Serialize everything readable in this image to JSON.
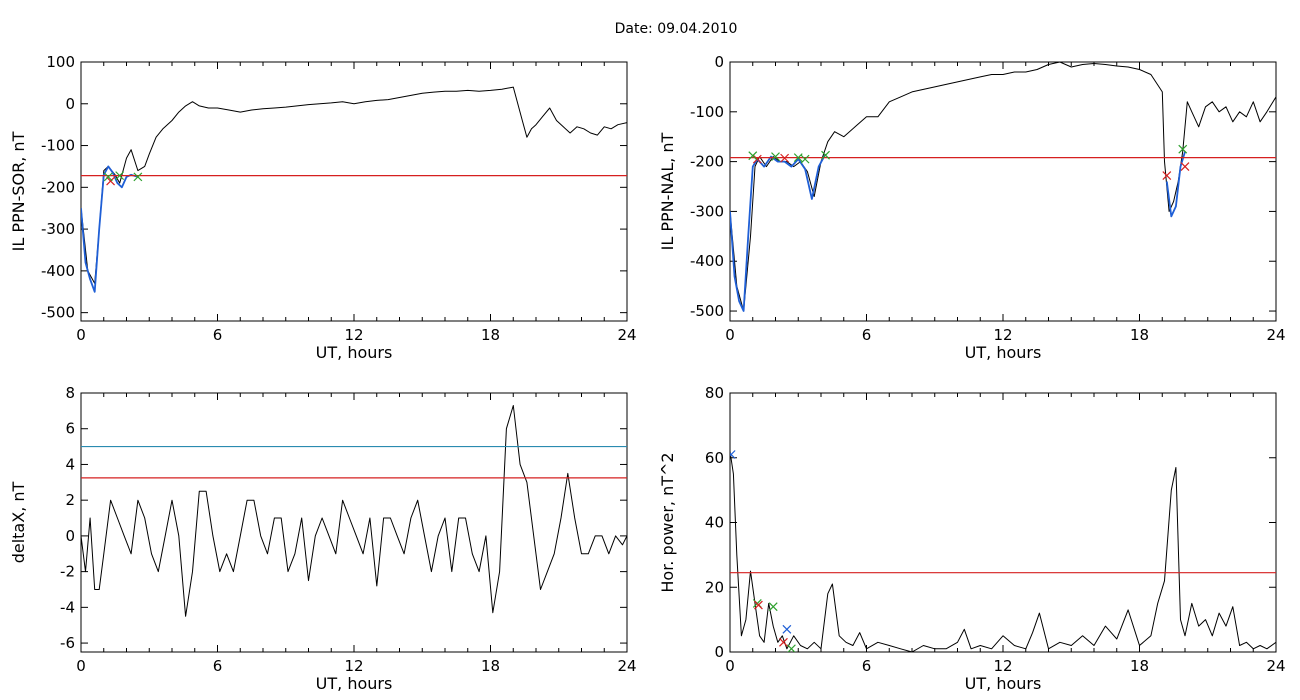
{
  "figure": {
    "title": "Date:  09.04.2010"
  },
  "chart_data": [
    {
      "type": "line",
      "xlabel": "UT, hours",
      "ylabel": "IL PPN-SOR, nT",
      "xlim": [
        0,
        24
      ],
      "ylim": [
        -520,
        100
      ],
      "xticks": [
        0,
        6,
        12,
        18,
        24
      ],
      "yticks": [
        100,
        0,
        -100,
        -200,
        -300,
        -400,
        -500
      ],
      "series": [
        {
          "role": "signal",
          "color": "#000000",
          "x": [
            0,
            0.3,
            0.6,
            0.8,
            1.0,
            1.2,
            1.5,
            1.7,
            2.0,
            2.2,
            2.5,
            2.8,
            3.0,
            3.3,
            3.6,
            4.0,
            4.3,
            4.6,
            4.9,
            5.2,
            5.6,
            6.0,
            6.5,
            7.0,
            7.5,
            8.0,
            8.5,
            9.0,
            9.5,
            10.0,
            10.5,
            11.0,
            11.5,
            12.0,
            12.5,
            13.0,
            13.5,
            14.0,
            14.5,
            15.0,
            15.5,
            16.0,
            16.5,
            17.0,
            17.5,
            18.0,
            18.5,
            19.0,
            19.4,
            19.6,
            19.8,
            20.0,
            20.3,
            20.6,
            20.9,
            21.2,
            21.5,
            21.8,
            22.1,
            22.4,
            22.7,
            23.0,
            23.3,
            23.6,
            24.0
          ],
          "y": [
            -250,
            -400,
            -430,
            -300,
            -160,
            -150,
            -170,
            -190,
            -130,
            -110,
            -160,
            -150,
            -120,
            -80,
            -60,
            -40,
            -20,
            -5,
            5,
            -5,
            -10,
            -10,
            -15,
            -20,
            -15,
            -12,
            -10,
            -8,
            -5,
            -2,
            0,
            2,
            5,
            0,
            5,
            8,
            10,
            15,
            20,
            25,
            28,
            30,
            30,
            32,
            30,
            32,
            35,
            40,
            -40,
            -80,
            -60,
            -50,
            -30,
            -10,
            -40,
            -55,
            -70,
            -55,
            -60,
            -70,
            -75,
            -55,
            -60,
            -50,
            -45
          ]
        },
        {
          "role": "highlight",
          "color": "#1f5fd6",
          "x": [
            0,
            0.2,
            0.4,
            0.6,
            0.8,
            1.0,
            1.2,
            1.4,
            1.6,
            1.8,
            2.0,
            2.2,
            2.5
          ],
          "y": [
            -250,
            -380,
            -420,
            -450,
            -300,
            -170,
            -150,
            -165,
            -190,
            -200,
            -175,
            -170,
            -175
          ]
        },
        {
          "role": "threshold",
          "color": "#d62020",
          "y": -172
        }
      ],
      "markers": [
        {
          "color": "#d62020",
          "x": 1.3,
          "y": -185
        },
        {
          "color": "#2ca02c",
          "x": 1.2,
          "y": -175
        },
        {
          "color": "#2ca02c",
          "x": 1.7,
          "y": -172
        },
        {
          "color": "#2ca02c",
          "x": 2.5,
          "y": -175
        }
      ]
    },
    {
      "type": "line",
      "xlabel": "UT, hours",
      "ylabel": "IL PPN-NAL, nT",
      "xlim": [
        0,
        24
      ],
      "ylim": [
        -520,
        0
      ],
      "xticks": [
        0,
        6,
        12,
        18,
        24
      ],
      "yticks": [
        0,
        -100,
        -200,
        -300,
        -400,
        -500
      ],
      "series": [
        {
          "role": "signal",
          "color": "#000000",
          "x": [
            0,
            0.3,
            0.6,
            0.9,
            1.1,
            1.3,
            1.6,
            1.9,
            2.2,
            2.5,
            2.8,
            3.1,
            3.4,
            3.7,
            4.0,
            4.3,
            4.6,
            5.0,
            5.5,
            6.0,
            6.5,
            7.0,
            7.5,
            8.0,
            8.5,
            9.0,
            9.5,
            10.0,
            10.5,
            11.0,
            11.5,
            12.0,
            12.5,
            13.0,
            13.5,
            14.0,
            14.5,
            15.0,
            15.5,
            16.0,
            16.5,
            17.0,
            17.5,
            18.0,
            18.5,
            19.0,
            19.1,
            19.3,
            19.5,
            19.7,
            19.9,
            20.1,
            20.3,
            20.6,
            20.9,
            21.2,
            21.5,
            21.8,
            22.1,
            22.4,
            22.7,
            23.0,
            23.3,
            23.6,
            24.0
          ],
          "y": [
            -300,
            -450,
            -500,
            -350,
            -210,
            -190,
            -210,
            -190,
            -200,
            -200,
            -210,
            -200,
            -220,
            -270,
            -200,
            -160,
            -140,
            -150,
            -130,
            -110,
            -110,
            -80,
            -70,
            -60,
            -55,
            -50,
            -45,
            -40,
            -35,
            -30,
            -25,
            -25,
            -20,
            -20,
            -15,
            -5,
            0,
            -10,
            -5,
            -3,
            -5,
            -8,
            -10,
            -15,
            -25,
            -60,
            -200,
            -300,
            -280,
            -240,
            -180,
            -80,
            -100,
            -130,
            -90,
            -80,
            -100,
            -90,
            -120,
            -100,
            -110,
            -80,
            -120,
            -100,
            -70
          ]
        },
        {
          "role": "highlight",
          "color": "#1f5fd6",
          "x": [
            0,
            0.2,
            0.4,
            0.6,
            0.8,
            1.0,
            1.2,
            1.5,
            1.8,
            2.1,
            2.4,
            2.7,
            3.0,
            3.3,
            3.6,
            3.9,
            4.2
          ],
          "y": [
            -300,
            -430,
            -480,
            -500,
            -350,
            -210,
            -195,
            -210,
            -190,
            -200,
            -200,
            -210,
            -195,
            -215,
            -275,
            -210,
            -185
          ]
        },
        {
          "role": "highlight",
          "color": "#1f5fd6",
          "x": [
            19.2,
            19.4,
            19.6,
            19.8,
            20.0
          ],
          "y": [
            -240,
            -310,
            -290,
            -210,
            -180
          ]
        },
        {
          "role": "threshold",
          "color": "#d62020",
          "y": -192
        }
      ],
      "markers": [
        {
          "color": "#d62020",
          "x": 1.2,
          "y": -195
        },
        {
          "color": "#2ca02c",
          "x": 1.0,
          "y": -188
        },
        {
          "color": "#2ca02c",
          "x": 2.0,
          "y": -190
        },
        {
          "color": "#d62020",
          "x": 2.4,
          "y": -193
        },
        {
          "color": "#2ca02c",
          "x": 3.0,
          "y": -192
        },
        {
          "color": "#2ca02c",
          "x": 3.3,
          "y": -195
        },
        {
          "color": "#2ca02c",
          "x": 4.2,
          "y": -187
        },
        {
          "color": "#d62020",
          "x": 19.2,
          "y": -228
        },
        {
          "color": "#2ca02c",
          "x": 19.9,
          "y": -175
        },
        {
          "color": "#d62020",
          "x": 20.0,
          "y": -210
        }
      ]
    },
    {
      "type": "line",
      "xlabel": "UT, hours",
      "ylabel": "deltaX, nT",
      "xlim": [
        0,
        24
      ],
      "ylim": [
        -6.5,
        8
      ],
      "xticks": [
        0,
        6,
        12,
        18,
        24
      ],
      "yticks": [
        8,
        6,
        4,
        2,
        0,
        -2,
        -4,
        -6
      ],
      "series": [
        {
          "role": "signal",
          "color": "#000000",
          "x": [
            0,
            0.2,
            0.4,
            0.6,
            0.8,
            1.0,
            1.3,
            1.6,
            1.9,
            2.2,
            2.5,
            2.8,
            3.1,
            3.4,
            3.7,
            4.0,
            4.3,
            4.6,
            4.9,
            5.2,
            5.5,
            5.8,
            6.1,
            6.4,
            6.7,
            7.0,
            7.3,
            7.6,
            7.9,
            8.2,
            8.5,
            8.8,
            9.1,
            9.4,
            9.7,
            10.0,
            10.3,
            10.6,
            10.9,
            11.2,
            11.5,
            11.8,
            12.1,
            12.4,
            12.7,
            13.0,
            13.3,
            13.6,
            13.9,
            14.2,
            14.5,
            14.8,
            15.1,
            15.4,
            15.7,
            16.0,
            16.3,
            16.6,
            16.9,
            17.2,
            17.5,
            17.8,
            18.1,
            18.4,
            18.7,
            19.0,
            19.3,
            19.6,
            19.9,
            20.2,
            20.5,
            20.8,
            21.1,
            21.4,
            21.7,
            22.0,
            22.3,
            22.6,
            22.9,
            23.2,
            23.5,
            23.8,
            24.0
          ],
          "y": [
            0,
            -2,
            1,
            -3,
            -3,
            -1,
            2,
            1,
            0,
            -1,
            2,
            1,
            -1,
            -2,
            0,
            2,
            0,
            -4.5,
            -2,
            2.5,
            2.5,
            0,
            -2,
            -1,
            -2,
            0,
            2,
            2,
            0,
            -1,
            1,
            1,
            -2,
            -1,
            1,
            -2.5,
            0,
            1,
            0,
            -1,
            2,
            1,
            0,
            -1,
            1,
            -2.8,
            1,
            1,
            0,
            -1,
            1,
            2,
            0,
            -2,
            0,
            1,
            -2,
            1,
            1,
            -1,
            -2,
            0,
            -4.3,
            -2,
            6,
            7.3,
            4,
            3,
            0,
            -3,
            -2,
            -1,
            1,
            3.5,
            1,
            -1,
            -1,
            0,
            0,
            -1,
            0,
            -0.5,
            0
          ]
        },
        {
          "role": "threshold",
          "color": "#2a8bb0",
          "y": 5
        },
        {
          "role": "threshold",
          "color": "#d62020",
          "y": 3.25
        }
      ],
      "markers": []
    },
    {
      "type": "line",
      "xlabel": "UT, hours",
      "ylabel": "Hor. power, nT^2",
      "xlim": [
        0,
        24
      ],
      "ylim": [
        0,
        80
      ],
      "xticks": [
        0,
        6,
        12,
        18,
        24
      ],
      "yticks": [
        80,
        60,
        40,
        20,
        0
      ],
      "series": [
        {
          "role": "signal",
          "color": "#000000",
          "x": [
            0,
            0.15,
            0.3,
            0.5,
            0.7,
            0.9,
            1.1,
            1.3,
            1.5,
            1.7,
            1.9,
            2.1,
            2.3,
            2.5,
            2.8,
            3.1,
            3.4,
            3.7,
            4.0,
            4.3,
            4.5,
            4.8,
            5.1,
            5.4,
            5.7,
            6.0,
            6.5,
            7.0,
            7.5,
            8.0,
            8.5,
            9.0,
            9.5,
            10.0,
            10.3,
            10.6,
            11.0,
            11.5,
            12.0,
            12.5,
            13.0,
            13.3,
            13.6,
            14.0,
            14.5,
            15.0,
            15.5,
            16.0,
            16.5,
            17.0,
            17.5,
            18.0,
            18.5,
            18.8,
            19.1,
            19.4,
            19.6,
            19.8,
            20.0,
            20.3,
            20.6,
            20.9,
            21.2,
            21.5,
            21.8,
            22.1,
            22.4,
            22.7,
            23.0,
            23.3,
            23.6,
            24.0
          ],
          "y": [
            62,
            55,
            30,
            5,
            10,
            25,
            15,
            5,
            3,
            15,
            8,
            3,
            5,
            1,
            5,
            2,
            1,
            3,
            1,
            18,
            21,
            5,
            3,
            2,
            6,
            1,
            3,
            2,
            1,
            0,
            2,
            1,
            1,
            3,
            7,
            1,
            2,
            1,
            5,
            2,
            1,
            6,
            12,
            1,
            3,
            2,
            5,
            2,
            8,
            4,
            13,
            2,
            5,
            15,
            22,
            50,
            57,
            10,
            5,
            15,
            8,
            10,
            5,
            12,
            8,
            14,
            2,
            3,
            1,
            2,
            1,
            3
          ]
        },
        {
          "role": "threshold",
          "color": "#d62020",
          "y": 24.5
        }
      ],
      "markers": [
        {
          "color": "#1f5fd6",
          "x": 0.05,
          "y": 61
        },
        {
          "color": "#2ca02c",
          "x": 1.2,
          "y": 15
        },
        {
          "color": "#d62020",
          "x": 1.25,
          "y": 14.5
        },
        {
          "color": "#2ca02c",
          "x": 1.9,
          "y": 14
        },
        {
          "color": "#d62020",
          "x": 2.35,
          "y": 3
        },
        {
          "color": "#1f5fd6",
          "x": 2.5,
          "y": 7
        },
        {
          "color": "#2ca02c",
          "x": 2.7,
          "y": 1
        }
      ]
    }
  ]
}
